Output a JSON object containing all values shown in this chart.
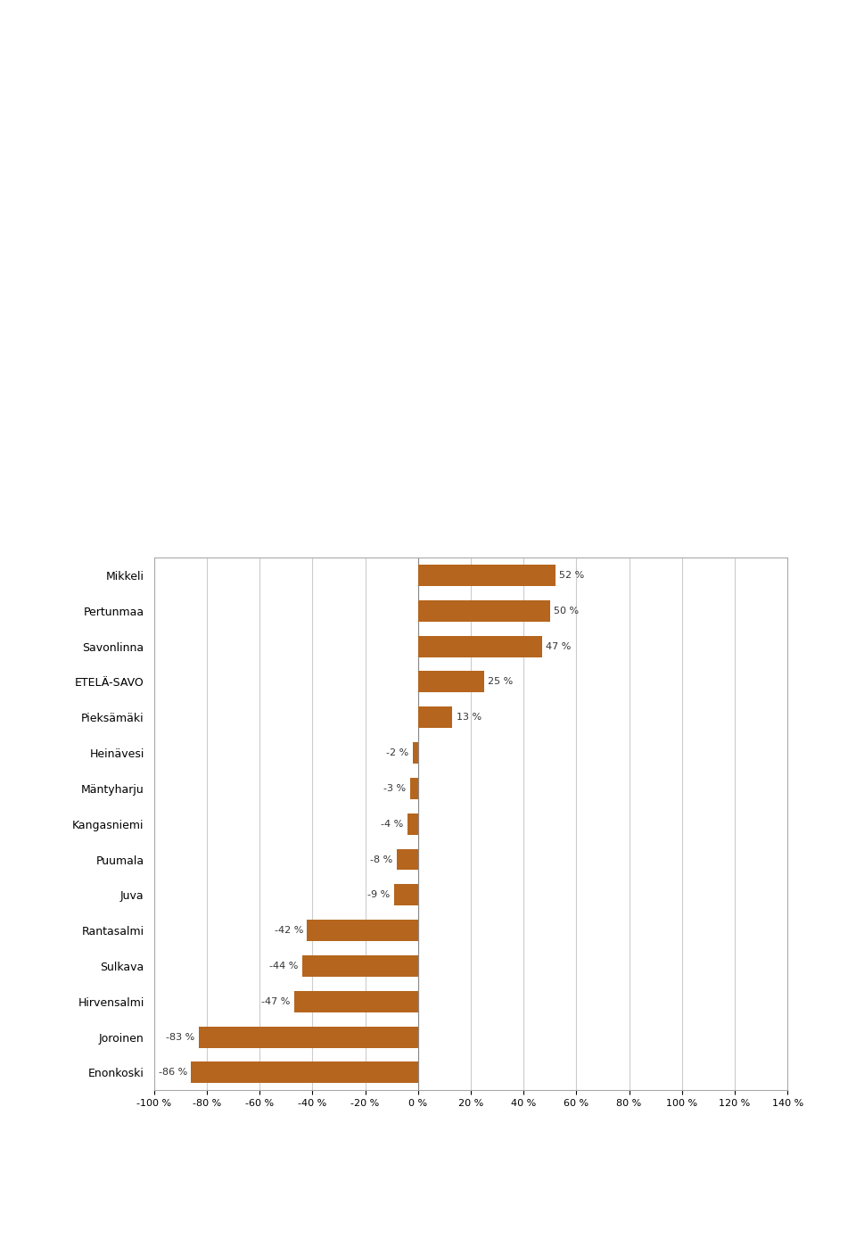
{
  "categories": [
    "Mikkeli",
    "Pertunmaa",
    "Savonlinna",
    "ETELÄ-SAVO",
    "Pieksämäki",
    "Heinävesi",
    "Mäntyharju",
    "Kangasniemi",
    "Puumala",
    "Juva",
    "Rantasalmi",
    "Sulkava",
    "Hirvensalmi",
    "Joroinen",
    "Enonkoski"
  ],
  "values": [
    52,
    50,
    47,
    25,
    13,
    -2,
    -3,
    -4,
    -8,
    -9,
    -42,
    -44,
    -47,
    -83,
    -86
  ],
  "bar_color": "#B5651D",
  "label_color": "#333333",
  "background_color": "#ffffff",
  "xlim": [
    -100,
    140
  ],
  "xticks": [
    -100,
    -80,
    -60,
    -40,
    -20,
    0,
    20,
    40,
    60,
    80,
    100,
    120,
    140
  ],
  "xlabel_format": "{} %",
  "grid_color": "#cccccc",
  "bar_height": 0.6,
  "value_label_fontsize": 8,
  "category_fontsize": 9,
  "tick_fontsize": 8
}
